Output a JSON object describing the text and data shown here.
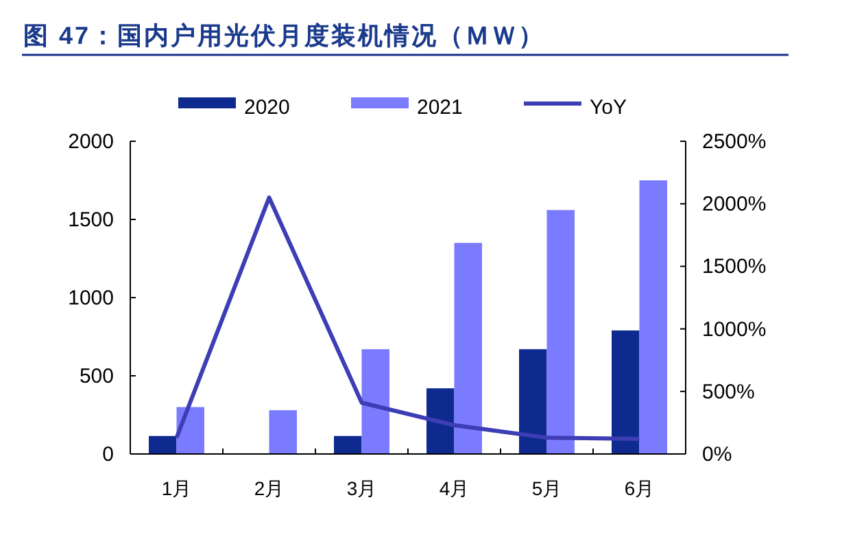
{
  "chart_data": {
    "type": "bar",
    "title": "图 47：国内户用光伏月度装机情况（ＭＷ）",
    "categories": [
      "1月",
      "2月",
      "3月",
      "4月",
      "5月",
      "6月"
    ],
    "series": [
      {
        "name": "2020",
        "color": "#0f2a8f",
        "values": [
          115,
          null,
          115,
          420,
          670,
          790
        ]
      },
      {
        "name": "2021",
        "color": "#7b7bff",
        "values": [
          300,
          280,
          670,
          1350,
          1560,
          1750
        ]
      },
      {
        "name": "YoY",
        "type": "line",
        "axis": "y2",
        "color": "#3d3db5",
        "values": [
          130,
          2050,
          410,
          230,
          130,
          120
        ]
      }
    ],
    "ylim": [
      0,
      2000
    ],
    "yticks": [
      0,
      500,
      1000,
      1500,
      2000
    ],
    "y2lim": [
      0,
      2500
    ],
    "y2ticks": [
      {
        "value": 0,
        "label": "0%"
      },
      {
        "value": 500,
        "label": "500%"
      },
      {
        "value": 1000,
        "label": "1000%"
      },
      {
        "value": 1500,
        "label": "1500%"
      },
      {
        "value": 2000,
        "label": "2000%"
      },
      {
        "value": 2500,
        "label": "2500%"
      }
    ],
    "legend": "top",
    "grid": false,
    "marker": "none"
  }
}
